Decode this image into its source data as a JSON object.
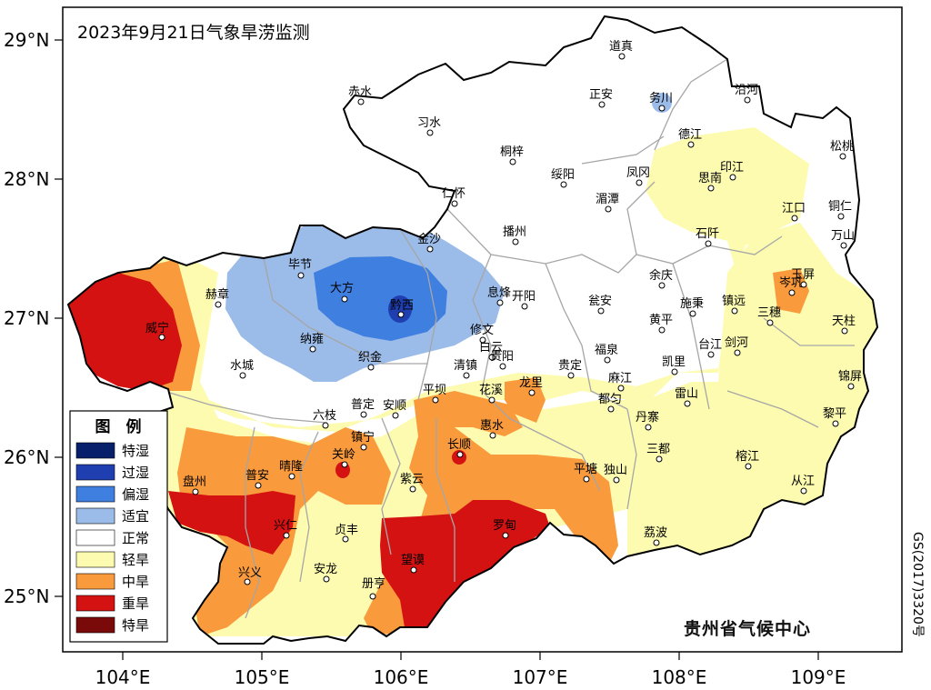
{
  "title": "2023年9月21日气象旱涝监测",
  "legend": {
    "title": "图　例",
    "items": [
      {
        "label": "特湿",
        "color": "#08206b"
      },
      {
        "label": "过湿",
        "color": "#1f3fb0"
      },
      {
        "label": "偏湿",
        "color": "#3f7fe0"
      },
      {
        "label": "适宜",
        "color": "#9bbbe8"
      },
      {
        "label": "正常",
        "color": "#ffffff"
      },
      {
        "label": "轻旱",
        "color": "#fdfbb0"
      },
      {
        "label": "中旱",
        "color": "#f99a3c"
      },
      {
        "label": "重旱",
        "color": "#d51212"
      },
      {
        "label": "特旱",
        "color": "#7a0a0a"
      }
    ]
  },
  "axes": {
    "y_ticks": [
      "29°N",
      "28°N",
      "27°N",
      "26°N",
      "25°N"
    ],
    "x_ticks": [
      "104°E",
      "105°E",
      "106°E",
      "107°E",
      "108°E",
      "109°E"
    ]
  },
  "credit": "贵州省气候中心",
  "map_code": "GS(2017)3320号",
  "cities": [
    {
      "name": "道真"
    },
    {
      "name": "赤水"
    },
    {
      "name": "正安"
    },
    {
      "name": "务川"
    },
    {
      "name": "沿河"
    },
    {
      "name": "习水"
    },
    {
      "name": "德江"
    },
    {
      "name": "松桃"
    },
    {
      "name": "桐梓"
    },
    {
      "name": "绥阳"
    },
    {
      "name": "凤冈"
    },
    {
      "name": "思南"
    },
    {
      "name": "印江"
    },
    {
      "name": "仁怀"
    },
    {
      "name": "湄潭"
    },
    {
      "name": "江口"
    },
    {
      "name": "铜仁"
    },
    {
      "name": "金沙"
    },
    {
      "name": "播州"
    },
    {
      "name": "石阡"
    },
    {
      "name": "万山"
    },
    {
      "name": "毕节"
    },
    {
      "name": "赫章"
    },
    {
      "name": "大方"
    },
    {
      "name": "黔西"
    },
    {
      "name": "息烽"
    },
    {
      "name": "开阳"
    },
    {
      "name": "余庆"
    },
    {
      "name": "岑巩"
    },
    {
      "name": "玉屏"
    },
    {
      "name": "瓮安"
    },
    {
      "name": "施秉"
    },
    {
      "name": "镇远"
    },
    {
      "name": "威宁"
    },
    {
      "name": "纳雍"
    },
    {
      "name": "修文"
    },
    {
      "name": "黄平"
    },
    {
      "name": "三穗"
    },
    {
      "name": "天柱"
    },
    {
      "name": "织金"
    },
    {
      "name": "白云"
    },
    {
      "name": "贵阳"
    },
    {
      "name": "贵定"
    },
    {
      "name": "福泉"
    },
    {
      "name": "凯里"
    },
    {
      "name": "台江"
    },
    {
      "name": "剑河"
    },
    {
      "name": "水城"
    },
    {
      "name": "清镇"
    },
    {
      "name": "龙里"
    },
    {
      "name": "麻江"
    },
    {
      "name": "锦屏"
    },
    {
      "name": "平坝"
    },
    {
      "name": "花溪"
    },
    {
      "name": "雷山"
    },
    {
      "name": "六枝"
    },
    {
      "name": "普定"
    },
    {
      "name": "安顺"
    },
    {
      "name": "都匀"
    },
    {
      "name": "黎平"
    },
    {
      "name": "惠水"
    },
    {
      "name": "丹寨"
    },
    {
      "name": "镇宁"
    },
    {
      "name": "三都"
    },
    {
      "name": "长顺"
    },
    {
      "name": "关岭"
    },
    {
      "name": "榕江"
    },
    {
      "name": "盘州"
    },
    {
      "name": "晴隆"
    },
    {
      "name": "普安"
    },
    {
      "name": "紫云"
    },
    {
      "name": "平塘"
    },
    {
      "name": "独山"
    },
    {
      "name": "从江"
    },
    {
      "name": "兴仁"
    },
    {
      "name": "罗甸"
    },
    {
      "name": "贞丰"
    },
    {
      "name": "荔波"
    },
    {
      "name": "兴义"
    },
    {
      "name": "安龙"
    },
    {
      "name": "望谟"
    },
    {
      "name": "册亨"
    }
  ]
}
